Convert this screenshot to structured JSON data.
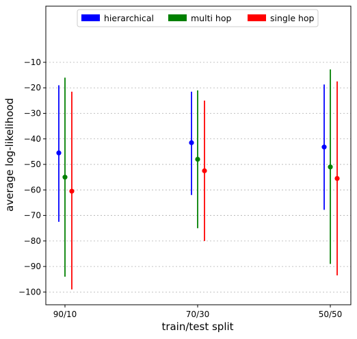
{
  "chart_data": {
    "type": "scatter",
    "style": "errorbar",
    "xlabel": "train/test split",
    "ylabel": "average log-likelihood",
    "categories": [
      "90/10",
      "70/30",
      "50/50"
    ],
    "ylim": [
      -105,
      12
    ],
    "yticks": [
      -100,
      -90,
      -80,
      -70,
      -60,
      -50,
      -40,
      -30,
      -20,
      -10
    ],
    "grid": "horizontal-dotted",
    "legend_position": "top",
    "series": [
      {
        "name": "hierarchical",
        "color": "#0000ff",
        "values": [
          -45.5,
          -41.5,
          -43.2
        ],
        "low": [
          -72.5,
          -62.0,
          -67.8
        ],
        "high": [
          -19.0,
          -21.5,
          -18.7
        ]
      },
      {
        "name": "multi hop",
        "color": "#008000",
        "values": [
          -55.0,
          -48.0,
          -51.0
        ],
        "low": [
          -94.0,
          -75.0,
          -89.0
        ],
        "high": [
          -16.0,
          -21.0,
          -12.8
        ]
      },
      {
        "name": "single hop",
        "color": "#ff0000",
        "values": [
          -60.5,
          -52.5,
          -55.5
        ],
        "low": [
          -99.0,
          -80.0,
          -93.5
        ],
        "high": [
          -21.5,
          -25.0,
          -17.5
        ]
      }
    ]
  }
}
